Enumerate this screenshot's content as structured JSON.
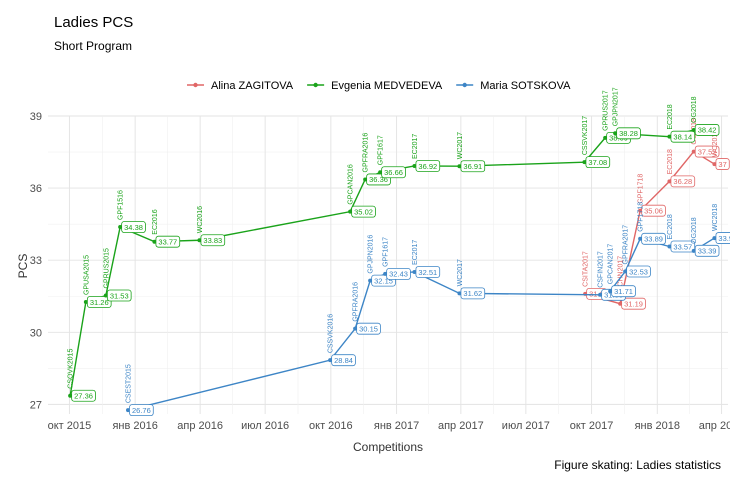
{
  "chart_data": {
    "type": "line",
    "title": "Ladies PCS",
    "subtitle": "Short Program",
    "xlabel": "Competitions",
    "ylabel": "PCS",
    "caption": "Figure skating: Ladies statistics",
    "ylim": [
      26.6,
      39
    ],
    "y_ticks": [
      27,
      30,
      33,
      36,
      39
    ],
    "xlim": [
      "2015-09-01",
      "2018-04-10"
    ],
    "x_ticks": [
      {
        "date": "2015-10-01",
        "label": "окт 2015"
      },
      {
        "date": "2016-01-01",
        "label": "янв 2016"
      },
      {
        "date": "2016-04-01",
        "label": "апр 2016"
      },
      {
        "date": "2016-07-01",
        "label": "июл 2016"
      },
      {
        "date": "2016-10-01",
        "label": "окт 2016"
      },
      {
        "date": "2017-01-01",
        "label": "янв 2017"
      },
      {
        "date": "2017-04-01",
        "label": "апр 2017"
      },
      {
        "date": "2017-07-01",
        "label": "июл 2017"
      },
      {
        "date": "2017-10-01",
        "label": "окт 2017"
      },
      {
        "date": "2018-01-01",
        "label": "янв 2018"
      },
      {
        "date": "2018-04-01",
        "label": "апр 2018"
      }
    ],
    "legend": {
      "placement": "top"
    },
    "series": [
      {
        "name": "Alina ZAGITOVA",
        "color": "#e06666",
        "points": [
          {
            "x": "2017-09-22",
            "y": 31.6,
            "label": "31.6",
            "competition": "CSITA2017"
          },
          {
            "x": "2017-11-10",
            "y": 31.19,
            "label": "31.19",
            "competition": "GPCHN2017"
          },
          {
            "x": "2017-12-08",
            "y": 35.06,
            "label": "35.06",
            "competition": "GPF1718"
          },
          {
            "x": "2018-01-18",
            "y": 36.28,
            "label": "36.28",
            "competition": "EC2018"
          },
          {
            "x": "2018-02-21",
            "y": 37.52,
            "label": "37.52",
            "competition": "OG2018"
          },
          {
            "x": "2018-03-22",
            "y": 37,
            "label": "37",
            "competition": "WC2018"
          }
        ]
      },
      {
        "name": "Evgenia MEDVEDEVA",
        "color": "#1aa31a",
        "points": [
          {
            "x": "2015-10-02",
            "y": 27.36,
            "label": "27.36",
            "competition": "CSOVK2015"
          },
          {
            "x": "2015-10-24",
            "y": 31.26,
            "label": "31.26",
            "competition": "GPUSA2015"
          },
          {
            "x": "2015-11-21",
            "y": 31.53,
            "label": "31.53",
            "competition": "GPRUS2015"
          },
          {
            "x": "2015-12-11",
            "y": 34.38,
            "label": "34.38",
            "competition": "GPF1516"
          },
          {
            "x": "2016-01-28",
            "y": 33.77,
            "label": "33.77",
            "competition": "EC2016"
          },
          {
            "x": "2016-03-31",
            "y": 33.83,
            "label": "33.83",
            "competition": "WC2016"
          },
          {
            "x": "2016-10-28",
            "y": 35.02,
            "label": "35.02",
            "competition": "GPCAN2016"
          },
          {
            "x": "2016-11-18",
            "y": 36.36,
            "label": "36.36",
            "competition": "GPFRA2016"
          },
          {
            "x": "2016-12-09",
            "y": 36.66,
            "label": "36.66",
            "competition": "GPF1617"
          },
          {
            "x": "2017-01-26",
            "y": 36.92,
            "label": "36.92",
            "competition": "EC2017"
          },
          {
            "x": "2017-03-30",
            "y": 36.91,
            "label": "36.91",
            "competition": "WC2017"
          },
          {
            "x": "2017-09-21",
            "y": 37.08,
            "label": "37.08",
            "competition": "CSSVK2017"
          },
          {
            "x": "2017-10-20",
            "y": 38.09,
            "label": "38.09",
            "competition": "GPRUS2017"
          },
          {
            "x": "2017-11-03",
            "y": 38.28,
            "label": "38.28",
            "competition": "GPJPN2017"
          },
          {
            "x": "2018-01-18",
            "y": 38.14,
            "label": "38.14",
            "competition": "EC2018"
          },
          {
            "x": "2018-02-21",
            "y": 38.42,
            "label": "38.42",
            "competition": "OG2018"
          }
        ]
      },
      {
        "name": "Maria SOTSKOVA",
        "color": "#3d85c6",
        "points": [
          {
            "x": "2015-12-22",
            "y": 26.76,
            "label": "26.76",
            "competition": "CSEST2015"
          },
          {
            "x": "2016-09-30",
            "y": 28.84,
            "label": "28.84",
            "competition": "CSSVK2016"
          },
          {
            "x": "2016-11-04",
            "y": 30.15,
            "label": "30.15",
            "competition": "GPFRA2016"
          },
          {
            "x": "2016-11-25",
            "y": 32.15,
            "label": "32.15",
            "competition": "GPJPN2016"
          },
          {
            "x": "2016-12-16",
            "y": 32.43,
            "label": "32.43",
            "competition": "GPF1617"
          },
          {
            "x": "2017-01-26",
            "y": 32.51,
            "label": "32.51",
            "competition": "EC2017"
          },
          {
            "x": "2017-03-30",
            "y": 31.62,
            "label": "31.62",
            "competition": "WC2017"
          },
          {
            "x": "2017-10-13",
            "y": 31.56,
            "label": "31.56",
            "competition": "CSFIN2017"
          },
          {
            "x": "2017-10-27",
            "y": 31.71,
            "label": "31.71",
            "competition": "GPCAN2017"
          },
          {
            "x": "2017-11-17",
            "y": 32.53,
            "label": "32.53",
            "competition": "GPFRA2017"
          },
          {
            "x": "2017-12-08",
            "y": 33.89,
            "label": "33.89",
            "competition": "GPF1718"
          },
          {
            "x": "2018-01-18",
            "y": 33.57,
            "label": "33.57",
            "competition": "EC2018"
          },
          {
            "x": "2018-02-21",
            "y": 33.39,
            "label": "33.39",
            "competition": "OG2018"
          },
          {
            "x": "2018-03-22",
            "y": 33.92,
            "label": "33.92",
            "competition": "WC2018"
          }
        ]
      }
    ]
  }
}
